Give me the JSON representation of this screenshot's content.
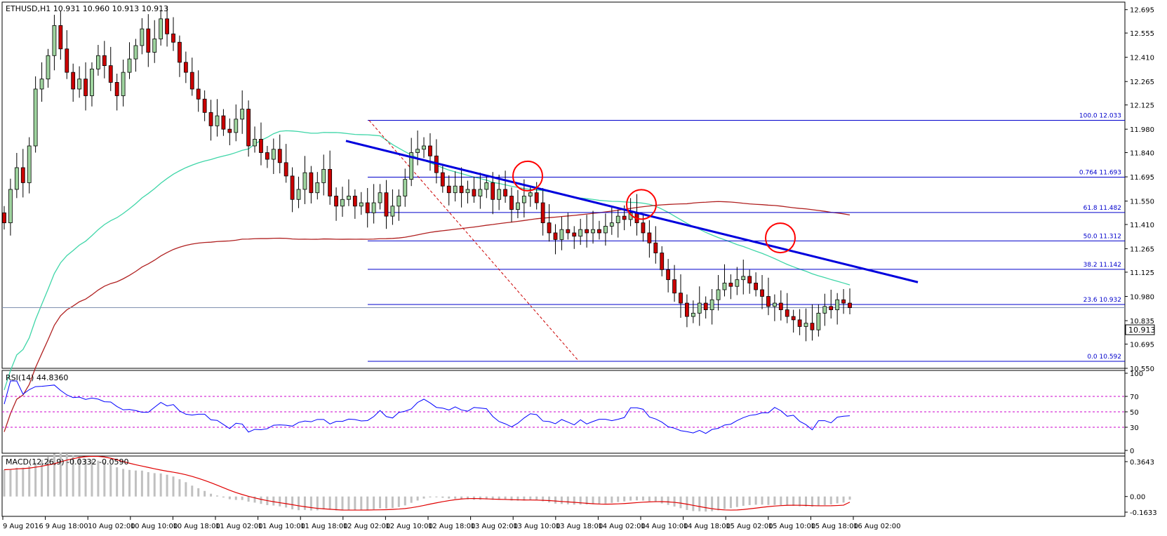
{
  "window": {
    "header": "ETHUSD,H1  10.931 10.960 10.913 10.913",
    "current_price": "10.913",
    "colors": {
      "bull": "#9fd49f",
      "bear": "#cc0000",
      "candle_outline": "#000000",
      "fib": "#0000cc",
      "trendline": "#0000dd",
      "ma_fast": "#3fd6a8",
      "ma_slow": "#b02020",
      "rsi": "#0000ff",
      "rsi_levels": "#cc00cc",
      "macd_hist": "#c0c0c0",
      "macd_signal": "#e00000",
      "circle": "#ff0000"
    }
  },
  "chart_data": [
    {
      "type": "candlestick",
      "title": "ETHUSD,H1",
      "ohlc_last": {
        "open": 10.931,
        "high": 10.96,
        "low": 10.913,
        "close": 10.913
      },
      "y_ticks": [
        "12.695",
        "12.555",
        "12.410",
        "12.265",
        "12.125",
        "11.980",
        "11.840",
        "11.695",
        "11.550",
        "11.410",
        "11.265",
        "11.125",
        "10.980",
        "10.835",
        "10.695",
        "10.550"
      ],
      "ylim": [
        10.55,
        12.74
      ],
      "x_tick_labels": [
        "9 Aug 2016",
        "9 Aug 18:00",
        "10 Aug 02:00",
        "10 Aug 10:00",
        "10 Aug 18:00",
        "11 Aug 02:00",
        "11 Aug 10:00",
        "11 Aug 18:00",
        "12 Aug 02:00",
        "12 Aug 10:00",
        "12 Aug 18:00",
        "13 Aug 02:00",
        "13 Aug 10:00",
        "13 Aug 18:00",
        "14 Aug 02:00",
        "14 Aug 10:00",
        "14 Aug 18:00",
        "15 Aug 02:00",
        "15 Aug 10:00",
        "15 Aug 18:00",
        "16 Aug 02:00"
      ],
      "fibonacci": [
        {
          "level": "100.0",
          "price": "12.033",
          "value": 12.033
        },
        {
          "level": "0.764",
          "price": "11.693",
          "value": 11.693
        },
        {
          "level": "61.8",
          "price": "11.482",
          "value": 11.482
        },
        {
          "level": "50.0",
          "price": "11.312",
          "value": 11.312
        },
        {
          "level": "38.2",
          "price": "11.142",
          "value": 11.142
        },
        {
          "level": "23.6",
          "price": "10.932",
          "value": 10.932
        },
        {
          "level": "0.0",
          "price": "10.592",
          "value": 10.592
        }
      ],
      "current_price_line": 10.913,
      "trendline": {
        "from": [
          0.0,
          11.91
        ],
        "to": [
          1.0,
          11.065
        ]
      },
      "closes": [
        11.42,
        11.62,
        11.75,
        11.66,
        11.88,
        12.22,
        12.28,
        12.42,
        12.6,
        12.46,
        12.32,
        12.22,
        12.28,
        12.18,
        12.34,
        12.42,
        12.36,
        12.26,
        12.18,
        12.32,
        12.4,
        12.48,
        12.58,
        12.44,
        12.52,
        12.64,
        12.55,
        12.5,
        12.38,
        12.32,
        12.22,
        12.16,
        12.08,
        12.0,
        12.06,
        11.98,
        11.96,
        12.04,
        12.1,
        11.88,
        11.92,
        11.84,
        11.8,
        11.86,
        11.78,
        11.7,
        11.56,
        11.62,
        11.72,
        11.6,
        11.66,
        11.74,
        11.58,
        11.52,
        11.56,
        11.58,
        11.52,
        11.54,
        11.48,
        11.54,
        11.6,
        11.46,
        11.52,
        11.58,
        11.68,
        11.84,
        11.86,
        11.88,
        11.82,
        11.72,
        11.64,
        11.6,
        11.64,
        11.6,
        11.62,
        11.58,
        11.62,
        11.66,
        11.56,
        11.62,
        11.58,
        11.5,
        11.54,
        11.58,
        11.6,
        11.54,
        11.42,
        11.36,
        11.32,
        11.38,
        11.36,
        11.34,
        11.38,
        11.36,
        11.38,
        11.36,
        11.4,
        11.42,
        11.46,
        11.44,
        11.48,
        11.42,
        11.36,
        11.3,
        11.24,
        11.14,
        11.08,
        11.0,
        10.94,
        10.86,
        10.88,
        10.94,
        10.9,
        10.96,
        11.02,
        11.06,
        11.04,
        11.08,
        11.1,
        11.06,
        11.02,
        10.98,
        10.92,
        10.94,
        10.9,
        10.86,
        10.84,
        10.8,
        10.82,
        10.78,
        10.88,
        10.92,
        10.9,
        10.96,
        10.94,
        10.913
      ],
      "ma_fast_endpoints": "sampled",
      "rsi": {
        "label": "RSI(14) 44.8360",
        "levels": [
          70,
          50,
          30
        ],
        "y_ticks": [
          "100",
          "70",
          "50",
          "30",
          "0"
        ],
        "last": 44.836
      },
      "macd": {
        "label": "MACD(12,26,9) -0.0332 -0.0590",
        "main": -0.0332,
        "signal": -0.059,
        "y_ticks": [
          "0.3643",
          "0.00",
          "-0.1633"
        ]
      }
    }
  ]
}
